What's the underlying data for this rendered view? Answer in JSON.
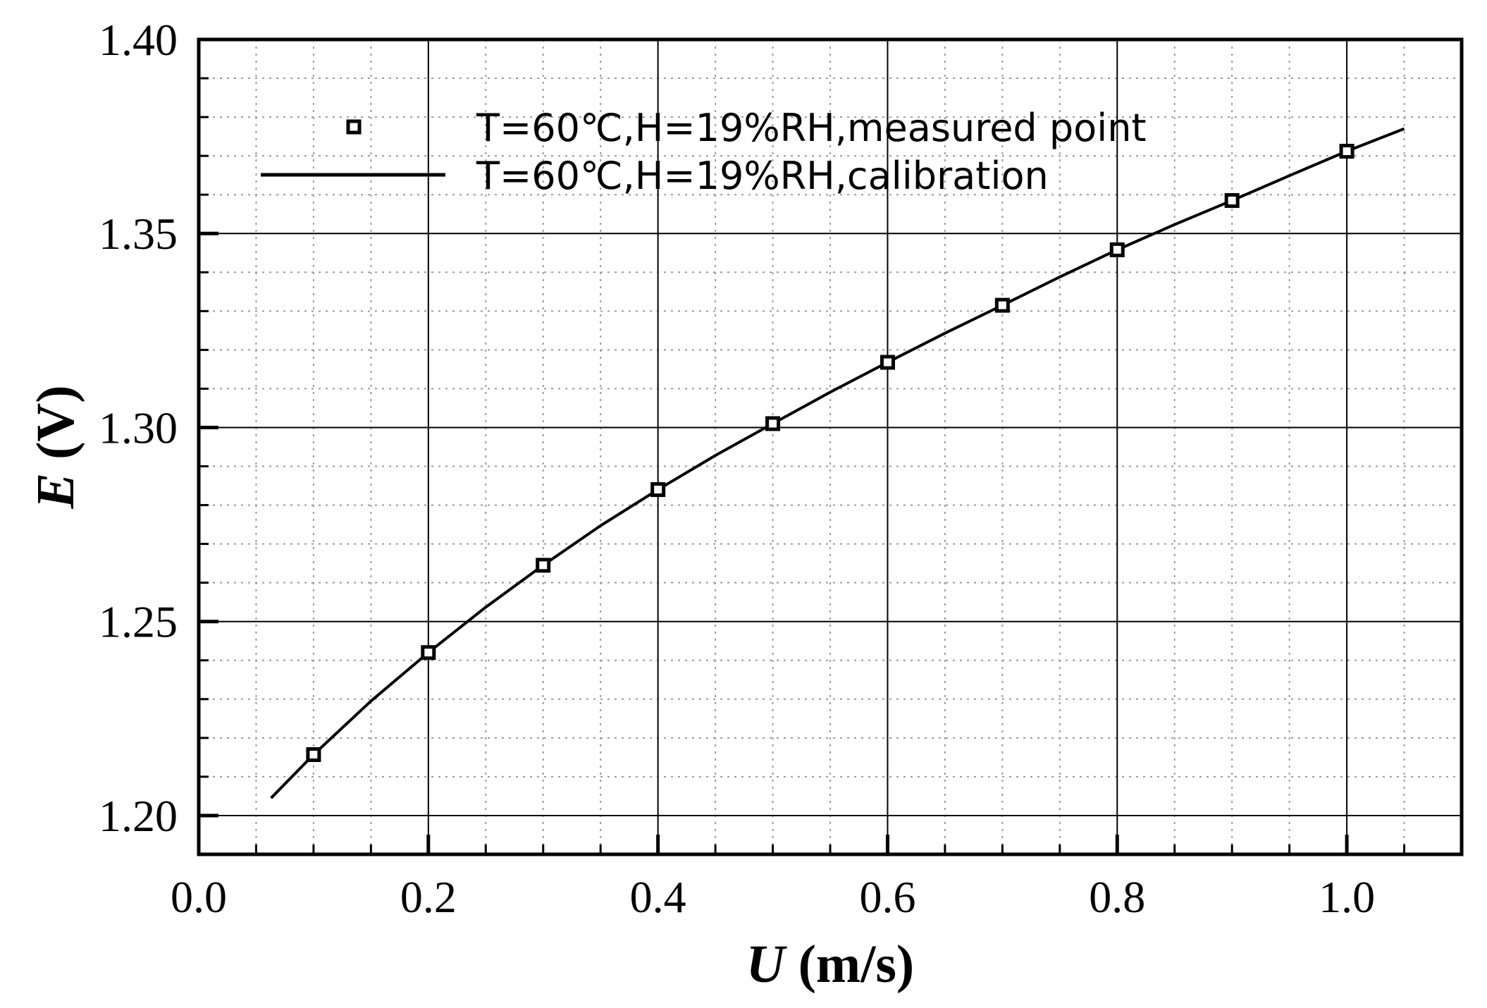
{
  "chart_data": {
    "type": "line",
    "xlabel": {
      "variable": "U",
      "unit": "(m/s)"
    },
    "ylabel": {
      "variable": "E",
      "unit": "(V)"
    },
    "xlim": [
      0.0,
      1.1
    ],
    "ylim": [
      1.19,
      1.4
    ],
    "xticks": [
      "0.0",
      "0.2",
      "0.4",
      "0.6",
      "0.8",
      "1.0"
    ],
    "yticks": [
      "1.20",
      "1.25",
      "1.30",
      "1.35",
      "1.40"
    ],
    "grid": {
      "major": true,
      "minor": true
    },
    "legend_position": "top-left",
    "series": [
      {
        "name": "T=60℃,H=19%RH,measured point",
        "kind": "scatter",
        "marker": "hollow-square",
        "x": [
          0.1,
          0.2,
          0.3,
          0.4,
          0.5,
          0.6,
          0.7,
          0.8,
          0.9,
          1.0
        ],
        "y": [
          1.2157,
          1.242,
          1.2645,
          1.284,
          1.301,
          1.3168,
          1.3315,
          1.3458,
          1.3585,
          1.3712
        ]
      },
      {
        "name": "T=60℃,H=19%RH,calibration",
        "kind": "line",
        "x": [
          0.063,
          0.1,
          0.15,
          0.2,
          0.25,
          0.3,
          0.35,
          0.4,
          0.45,
          0.5,
          0.55,
          0.6,
          0.65,
          0.7,
          0.75,
          0.8,
          0.85,
          0.9,
          0.95,
          1.0,
          1.05
        ],
        "y": [
          1.2045,
          1.2157,
          1.2295,
          1.242,
          1.2537,
          1.2645,
          1.2747,
          1.284,
          1.2928,
          1.301,
          1.3091,
          1.3168,
          1.3243,
          1.3315,
          1.3388,
          1.3458,
          1.3523,
          1.3585,
          1.3649,
          1.3712,
          1.377
        ]
      }
    ],
    "colors": {
      "line": "#000000",
      "grid_major": "#000000",
      "grid_minor": "#9a9a9a"
    }
  }
}
